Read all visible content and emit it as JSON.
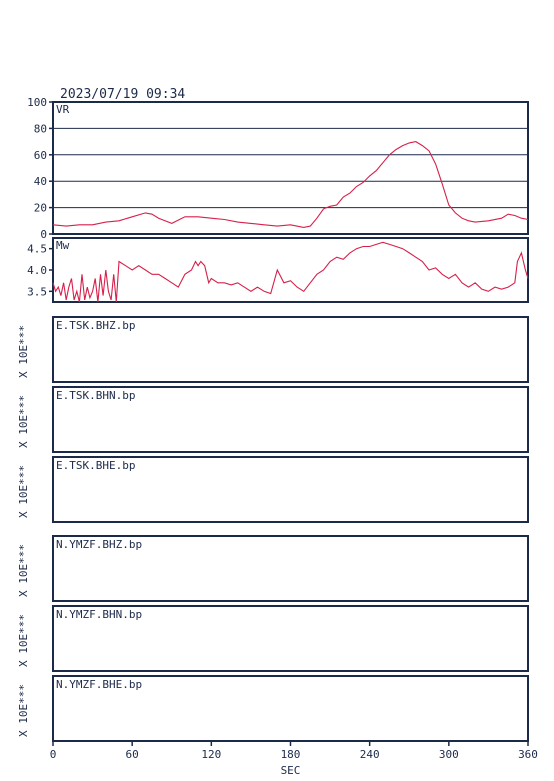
{
  "title": "2023/07/19 09:34",
  "chart_data": [
    {
      "type": "line",
      "panel": "vr",
      "ylabel": "VR",
      "ylim": [
        0,
        100
      ],
      "xlim": [
        0,
        360
      ],
      "yticks": [
        0,
        20,
        40,
        60,
        80,
        100
      ],
      "grid": true,
      "series": [
        {
          "color": "#d6204a",
          "x": [
            0,
            10,
            20,
            30,
            40,
            50,
            60,
            70,
            75,
            80,
            90,
            100,
            110,
            120,
            130,
            140,
            150,
            160,
            170,
            180,
            190,
            195,
            200,
            205,
            210,
            215,
            220,
            225,
            230,
            235,
            240,
            245,
            250,
            255,
            260,
            265,
            270,
            275,
            280,
            285,
            290,
            295,
            300,
            305,
            310,
            315,
            320,
            330,
            340,
            345,
            350,
            355,
            360
          ],
          "y": [
            7,
            6,
            7,
            7,
            9,
            10,
            13,
            16,
            15,
            12,
            8,
            13,
            13,
            12,
            11,
            9,
            8,
            7,
            6,
            7,
            5,
            6,
            12,
            19,
            21,
            22,
            28,
            31,
            36,
            39,
            44,
            48,
            54,
            60,
            64,
            67,
            69,
            70,
            67,
            63,
            53,
            38,
            22,
            16,
            12,
            10,
            9,
            10,
            12,
            15,
            14,
            12,
            11
          ]
        }
      ]
    },
    {
      "type": "line",
      "panel": "mw",
      "ylabel": "Mw",
      "ylim": [
        3.25,
        4.75
      ],
      "xlim": [
        0,
        360
      ],
      "yticks": [
        3.5,
        4.0,
        4.5
      ],
      "ytick_labels": [
        "3.5",
        "4.0",
        "4.5"
      ],
      "grid": false,
      "series": [
        {
          "color": "#d6204a",
          "x": [
            0,
            2,
            4,
            6,
            8,
            10,
            12,
            14,
            16,
            18,
            20,
            22,
            24,
            26,
            28,
            30,
            32,
            34,
            36,
            38,
            40,
            42,
            44,
            46,
            48,
            50,
            55,
            60,
            65,
            70,
            75,
            80,
            85,
            90,
            95,
            100,
            105,
            108,
            110,
            112,
            115,
            118,
            120,
            125,
            130,
            135,
            140,
            145,
            150,
            155,
            160,
            165,
            170,
            175,
            180,
            185,
            190,
            195,
            200,
            205,
            210,
            215,
            220,
            225,
            230,
            235,
            240,
            245,
            250,
            255,
            260,
            265,
            270,
            275,
            280,
            285,
            290,
            295,
            300,
            305,
            310,
            315,
            320,
            325,
            330,
            335,
            340,
            345,
            350,
            352,
            355,
            358,
            360
          ],
          "y": [
            3.7,
            3.5,
            3.6,
            3.4,
            3.7,
            3.3,
            3.6,
            3.8,
            3.3,
            3.5,
            3.25,
            3.9,
            3.3,
            3.6,
            3.35,
            3.5,
            3.8,
            3.25,
            3.9,
            3.4,
            4.0,
            3.5,
            3.3,
            3.9,
            3.25,
            4.2,
            4.1,
            4.0,
            4.1,
            4.0,
            3.9,
            3.9,
            3.8,
            3.7,
            3.6,
            3.9,
            4.0,
            4.2,
            4.1,
            4.2,
            4.1,
            3.7,
            3.8,
            3.7,
            3.7,
            3.65,
            3.7,
            3.6,
            3.5,
            3.6,
            3.5,
            3.45,
            4.0,
            3.7,
            3.75,
            3.6,
            3.5,
            3.7,
            3.9,
            4.0,
            4.2,
            4.3,
            4.25,
            4.4,
            4.5,
            4.55,
            4.55,
            4.6,
            4.65,
            4.6,
            4.55,
            4.5,
            4.4,
            4.3,
            4.2,
            4.0,
            4.05,
            3.9,
            3.8,
            3.9,
            3.7,
            3.6,
            3.7,
            3.55,
            3.5,
            3.6,
            3.55,
            3.6,
            3.7,
            4.2,
            4.4,
            4.0,
            3.8
          ]
        }
      ]
    }
  ],
  "xaxis": {
    "label": "SEC",
    "range": [
      0,
      360
    ],
    "ticks": [
      0,
      60,
      120,
      180,
      240,
      300,
      360
    ]
  },
  "stations": [
    {
      "scale": "X 10E***",
      "label": "E.TSK.BHZ.bp"
    },
    {
      "scale": "X 10E***",
      "label": "E.TSK.BHN.bp"
    },
    {
      "scale": "X 10E***",
      "label": "E.TSK.BHE.bp"
    },
    {
      "scale": "X 10E***",
      "label": "N.YMZF.BHZ.bp"
    },
    {
      "scale": "X 10E***",
      "label": "N.YMZF.BHN.bp"
    },
    {
      "scale": "X 10E***",
      "label": "N.YMZF.BHE.bp"
    }
  ]
}
